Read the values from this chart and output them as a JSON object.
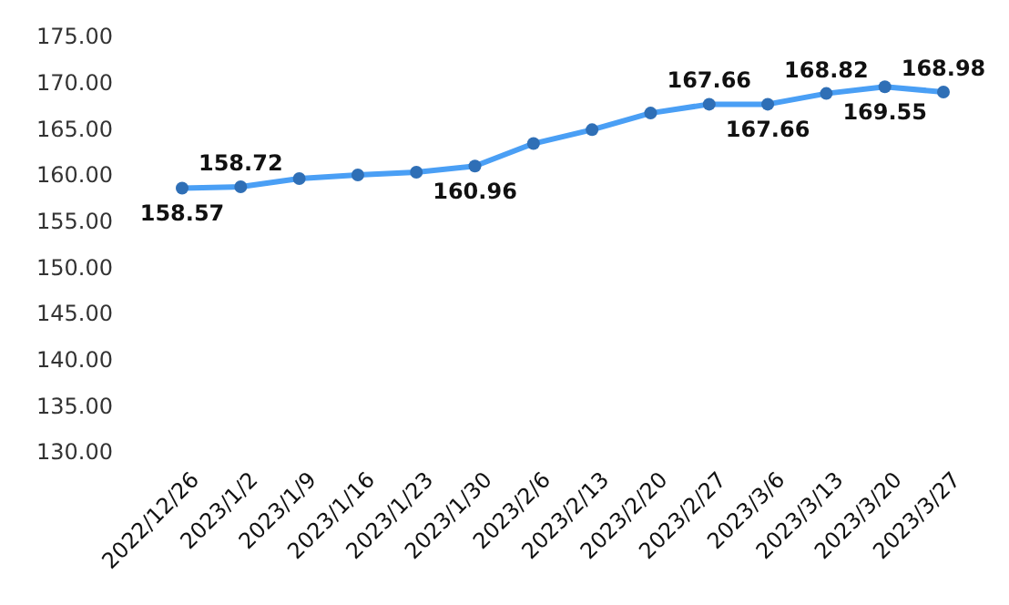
{
  "chart_data": {
    "type": "line",
    "categories": [
      "2022/12/26",
      "2023/1/2",
      "2023/1/9",
      "2023/1/16",
      "2023/1/23",
      "2023/1/30",
      "2023/2/6",
      "2023/2/13",
      "2023/2/20",
      "2023/2/27",
      "2023/3/6",
      "2023/3/13",
      "2023/3/20",
      "2023/3/27"
    ],
    "series": [
      {
        "color": "#4a9ff5",
        "values": [
          158.57,
          158.72,
          159.6,
          160.0,
          160.3,
          160.96,
          163.4,
          164.9,
          166.7,
          167.66,
          167.66,
          168.82,
          169.55,
          168.98
        ],
        "value_labels": [
          "158.57",
          "158.72",
          null,
          null,
          null,
          "160.96",
          null,
          null,
          null,
          "167.66",
          "167.66",
          "168.82",
          "169.55",
          "168.98"
        ]
      }
    ],
    "ylim": [
      130,
      175
    ],
    "yticks": [
      {
        "value": 130,
        "label": "130.00"
      },
      {
        "value": 135,
        "label": "135.00"
      },
      {
        "value": 140,
        "label": "140.00"
      },
      {
        "value": 145,
        "label": "145.00"
      },
      {
        "value": 150,
        "label": "150.00"
      },
      {
        "value": 155,
        "label": "155.00"
      },
      {
        "value": 160,
        "label": "160.00"
      },
      {
        "value": 165,
        "label": "165.00"
      },
      {
        "value": 170,
        "label": "170.00"
      },
      {
        "value": 175,
        "label": "175.00"
      }
    ],
    "marker": "circle",
    "line_style": "solid",
    "grid": false
  }
}
